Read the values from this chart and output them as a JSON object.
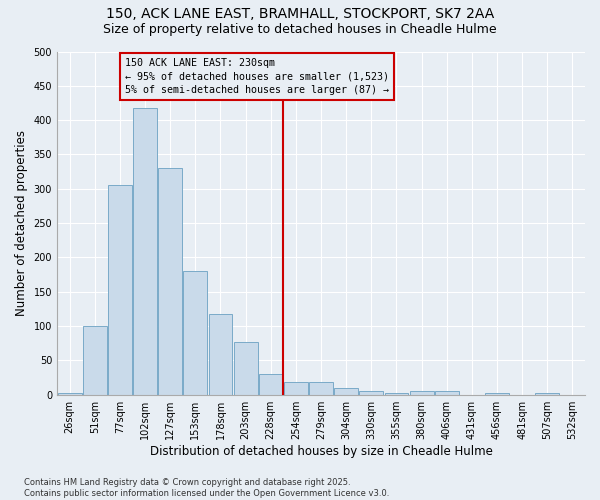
{
  "title_line1": "150, ACK LANE EAST, BRAMHALL, STOCKPORT, SK7 2AA",
  "title_line2": "Size of property relative to detached houses in Cheadle Hulme",
  "xlabel": "Distribution of detached houses by size in Cheadle Hulme",
  "ylabel": "Number of detached properties",
  "categories": [
    "26sqm",
    "51sqm",
    "77sqm",
    "102sqm",
    "127sqm",
    "153sqm",
    "178sqm",
    "203sqm",
    "228sqm",
    "254sqm",
    "279sqm",
    "304sqm",
    "330sqm",
    "355sqm",
    "380sqm",
    "406sqm",
    "431sqm",
    "456sqm",
    "481sqm",
    "507sqm",
    "532sqm"
  ],
  "values": [
    3,
    100,
    305,
    418,
    330,
    180,
    117,
    77,
    30,
    18,
    18,
    10,
    5,
    2,
    5,
    5,
    0,
    2,
    0,
    2,
    0
  ],
  "bar_color": "#c9daea",
  "bar_edge_color": "#7aaac8",
  "vline_index": 8,
  "vline_color": "#cc0000",
  "annotation_text": "150 ACK LANE EAST: 230sqm\n← 95% of detached houses are smaller (1,523)\n5% of semi-detached houses are larger (87) →",
  "annotation_box_color": "#cc0000",
  "annotation_text_color": "#000000",
  "ylim": [
    0,
    500
  ],
  "yticks": [
    0,
    50,
    100,
    150,
    200,
    250,
    300,
    350,
    400,
    450,
    500
  ],
  "background_color": "#e8eef4",
  "grid_color": "#ffffff",
  "footer_text": "Contains HM Land Registry data © Crown copyright and database right 2025.\nContains public sector information licensed under the Open Government Licence v3.0.",
  "title_fontsize": 10,
  "subtitle_fontsize": 9,
  "tick_fontsize": 7,
  "label_fontsize": 8.5,
  "footer_fontsize": 6
}
